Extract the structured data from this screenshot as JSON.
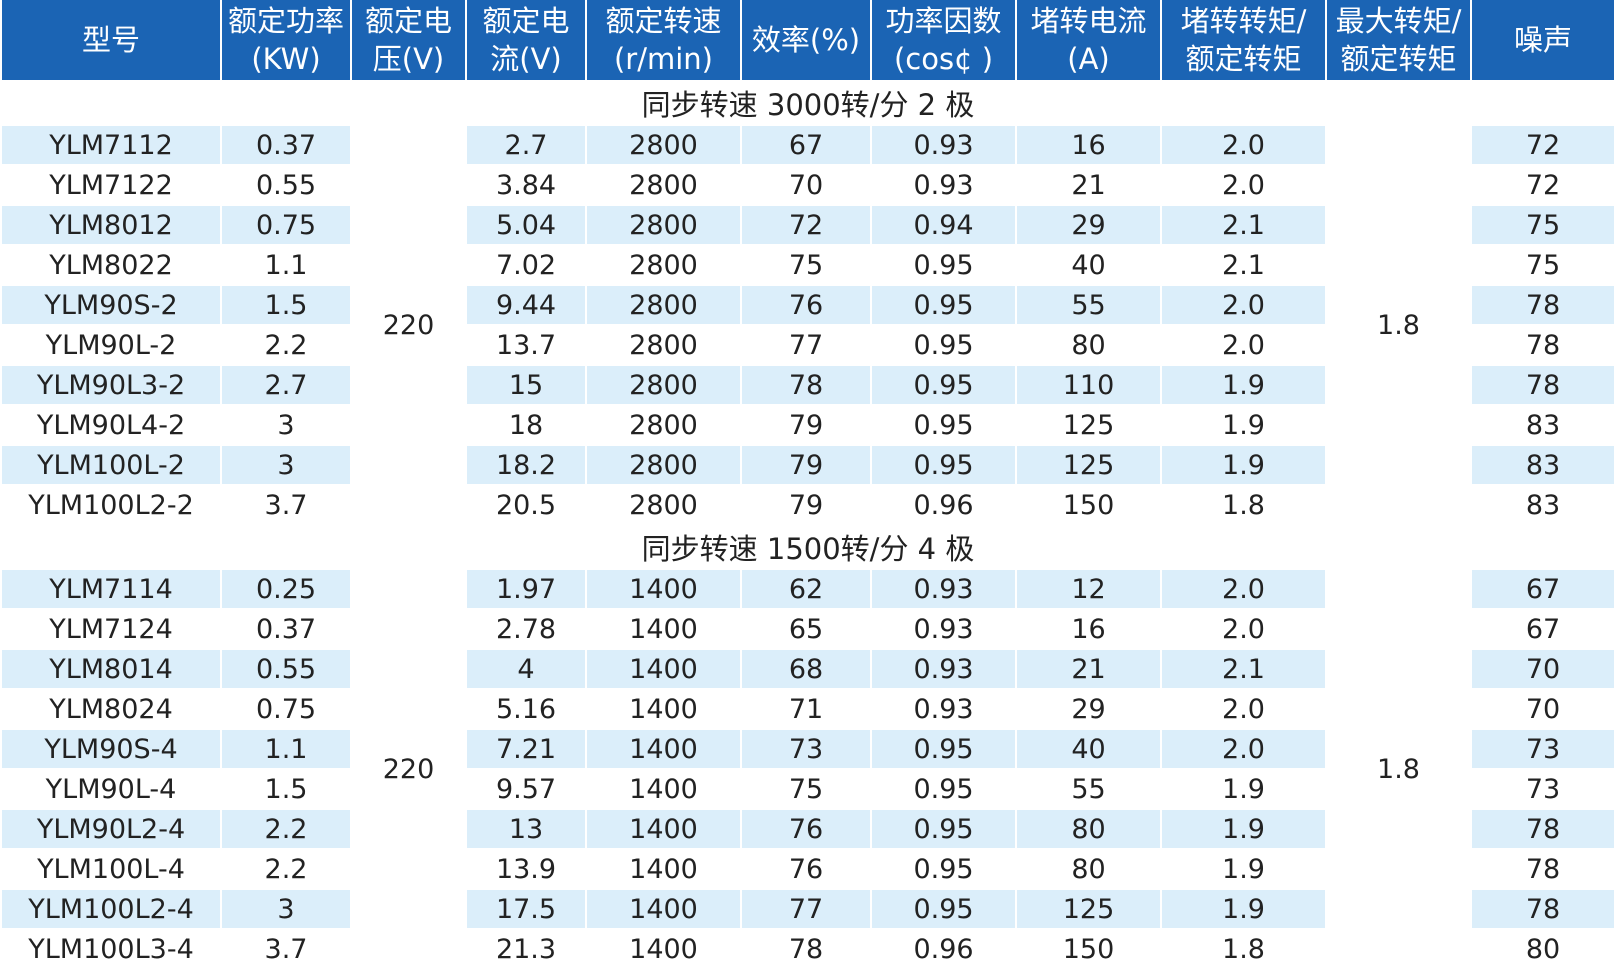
{
  "headers": [
    {
      "line1": "型号",
      "line2": ""
    },
    {
      "line1": "额定功率",
      "line2": "(KW)"
    },
    {
      "line1": "额定电",
      "line2": "压(V)"
    },
    {
      "line1": "额定电",
      "line2": "流(V)"
    },
    {
      "line1": "额定转速",
      "line2": "(r/min)"
    },
    {
      "line1": "效率(%)",
      "line2": ""
    },
    {
      "line1": "功率因数",
      "line2": "(cos¢ )"
    },
    {
      "line1": "堵转电流",
      "line2": "(A)"
    },
    {
      "line1": "堵转转矩/",
      "line2": "额定转矩"
    },
    {
      "line1": "最大转矩/",
      "line2": "额定转矩"
    },
    {
      "line1": "噪声",
      "line2": ""
    }
  ],
  "sections": [
    {
      "title": "同步转速  3000转/分  2 极",
      "voltage": "220",
      "max_torque_ratio": "1.8",
      "rows": [
        {
          "model": "YLM7112",
          "power": "0.37",
          "current": "2.7",
          "speed": "2800",
          "efficiency": "67",
          "pf": "0.93",
          "locked_current": "16",
          "locked_torque": "2.0",
          "noise": "72"
        },
        {
          "model": "YLM7122",
          "power": "0.55",
          "current": "3.84",
          "speed": "2800",
          "efficiency": "70",
          "pf": "0.93",
          "locked_current": "21",
          "locked_torque": "2.0",
          "noise": "72"
        },
        {
          "model": "YLM8012",
          "power": "0.75",
          "current": "5.04",
          "speed": "2800",
          "efficiency": "72",
          "pf": "0.94",
          "locked_current": "29",
          "locked_torque": "2.1",
          "noise": "75"
        },
        {
          "model": "YLM8022",
          "power": "1.1",
          "current": "7.02",
          "speed": "2800",
          "efficiency": "75",
          "pf": "0.95",
          "locked_current": "40",
          "locked_torque": "2.1",
          "noise": "75"
        },
        {
          "model": "YLM90S-2",
          "power": "1.5",
          "current": "9.44",
          "speed": "2800",
          "efficiency": "76",
          "pf": "0.95",
          "locked_current": "55",
          "locked_torque": "2.0",
          "noise": "78"
        },
        {
          "model": "YLM90L-2",
          "power": "2.2",
          "current": "13.7",
          "speed": "2800",
          "efficiency": "77",
          "pf": "0.95",
          "locked_current": "80",
          "locked_torque": "2.0",
          "noise": "78"
        },
        {
          "model": "YLM90L3-2",
          "power": "2.7",
          "current": "15",
          "speed": "2800",
          "efficiency": "78",
          "pf": "0.95",
          "locked_current": "110",
          "locked_torque": "1.9",
          "noise": "78"
        },
        {
          "model": "YLM90L4-2",
          "power": "3",
          "current": "18",
          "speed": "2800",
          "efficiency": "79",
          "pf": "0.95",
          "locked_current": "125",
          "locked_torque": "1.9",
          "noise": "83"
        },
        {
          "model": "YLM100L-2",
          "power": "3",
          "current": "18.2",
          "speed": "2800",
          "efficiency": "79",
          "pf": "0.95",
          "locked_current": "125",
          "locked_torque": "1.9",
          "noise": "83"
        },
        {
          "model": "YLM100L2-2",
          "power": "3.7",
          "current": "20.5",
          "speed": "2800",
          "efficiency": "79",
          "pf": "0.96",
          "locked_current": "150",
          "locked_torque": "1.8",
          "noise": "83"
        }
      ]
    },
    {
      "title": "同步转速  1500转/分  4 极",
      "voltage": "220",
      "max_torque_ratio": "1.8",
      "rows": [
        {
          "model": "YLM7114",
          "power": "0.25",
          "current": "1.97",
          "speed": "1400",
          "efficiency": "62",
          "pf": "0.93",
          "locked_current": "12",
          "locked_torque": "2.0",
          "noise": "67"
        },
        {
          "model": "YLM7124",
          "power": "0.37",
          "current": "2.78",
          "speed": "1400",
          "efficiency": "65",
          "pf": "0.93",
          "locked_current": "16",
          "locked_torque": "2.0",
          "noise": "67"
        },
        {
          "model": "YLM8014",
          "power": "0.55",
          "current": "4",
          "speed": "1400",
          "efficiency": "68",
          "pf": "0.93",
          "locked_current": "21",
          "locked_torque": "2.1",
          "noise": "70"
        },
        {
          "model": "YLM8024",
          "power": "0.75",
          "current": "5.16",
          "speed": "1400",
          "efficiency": "71",
          "pf": "0.93",
          "locked_current": "29",
          "locked_torque": "2.0",
          "noise": "70"
        },
        {
          "model": "YLM90S-4",
          "power": "1.1",
          "current": "7.21",
          "speed": "1400",
          "efficiency": "73",
          "pf": "0.95",
          "locked_current": "40",
          "locked_torque": "2.0",
          "noise": "73"
        },
        {
          "model": "YLM90L-4",
          "power": "1.5",
          "current": "9.57",
          "speed": "1400",
          "efficiency": "75",
          "pf": "0.95",
          "locked_current": "55",
          "locked_torque": "1.9",
          "noise": "73"
        },
        {
          "model": "YLM90L2-4",
          "power": "2.2",
          "current": "13",
          "speed": "1400",
          "efficiency": "76",
          "pf": "0.95",
          "locked_current": "80",
          "locked_torque": "1.9",
          "noise": "78"
        },
        {
          "model": "YLM100L-4",
          "power": "2.2",
          "current": "13.9",
          "speed": "1400",
          "efficiency": "76",
          "pf": "0.95",
          "locked_current": "80",
          "locked_torque": "1.9",
          "noise": "78"
        },
        {
          "model": "YLM100L2-4",
          "power": "3",
          "current": "17.5",
          "speed": "1400",
          "efficiency": "77",
          "pf": "0.95",
          "locked_current": "125",
          "locked_torque": "1.9",
          "noise": "78"
        },
        {
          "model": "YLM100L3-4",
          "power": "3.7",
          "current": "21.3",
          "speed": "1400",
          "efficiency": "78",
          "pf": "0.96",
          "locked_current": "150",
          "locked_torque": "1.8",
          "noise": "80"
        }
      ]
    }
  ],
  "colors": {
    "header_bg": "#1b64b4",
    "header_text": "#ffffff",
    "row_stripe": "#dbeefa",
    "row_plain": "#ffffff",
    "body_text": "#222222"
  }
}
